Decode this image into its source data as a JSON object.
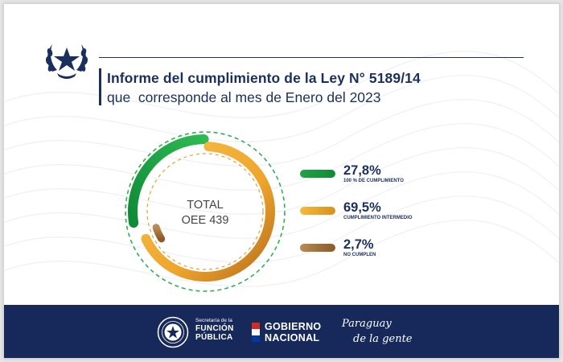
{
  "header": {
    "title": "Informe del cumplimiento de la Ley N° 5189/14",
    "subtitle": "que  corresponde al mes de Enero del 2023"
  },
  "chart_data": {
    "type": "pie",
    "style": "donut",
    "center_label": [
      "TOTAL",
      "OEE 439"
    ],
    "title": "Informe del cumplimiento de la Ley N° 5189/14",
    "subtitle": "que  corresponde al mes de Enero del 2023",
    "categories": [
      "100 % de cumplimiento",
      "Cumplimiento intermedio",
      "No cumplen"
    ],
    "values": [
      27.8,
      69.5,
      2.7
    ],
    "value_labels": [
      "27,8%",
      "69,5%",
      "2,7%"
    ],
    "units": "%",
    "colors": [
      "#21a245",
      "#f0b030",
      "#a8763a"
    ],
    "legend_position": "right"
  },
  "legend": [
    {
      "value": "27,8%",
      "label": "100 % de cumplimiento",
      "color": "#21a245",
      "color_end": "#0f8a36"
    },
    {
      "value": "69,5%",
      "label": "Cumplimiento intermedio",
      "color": "#f4bb3a",
      "color_end": "#d88f1e"
    },
    {
      "value": "2,7%",
      "label": "No cumplen",
      "color": "#b98a52",
      "color_end": "#8a5a28"
    }
  ],
  "footer": {
    "sfp_line1": "Secretaría de la",
    "sfp_line2": "FUNCIÓN",
    "sfp_line3": "PÚBLICA",
    "gn_line1": "GOBIERNO",
    "gn_line2": "NACIONAL",
    "pdg_line1": "Paraguay",
    "pdg_line2": "de la gente",
    "bg_color": "#16295a"
  }
}
